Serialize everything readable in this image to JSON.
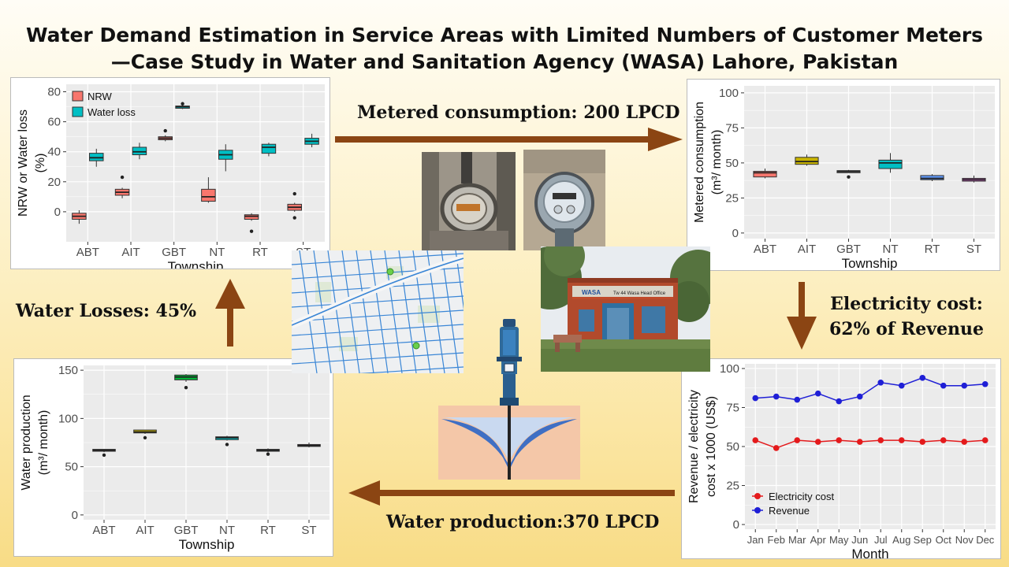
{
  "title": {
    "line1": "Water Demand Estimation in Service Areas with Limited Numbers of Customer Meters",
    "line2": "—Case Study in Water and Sanitation Agency (WASA) Lahore, Pakistan"
  },
  "labels": {
    "metered": "Metered consumption: 200 LPCD",
    "electricity_1": "Electricity cost:",
    "electricity_2": "62% of Revenue",
    "production": "Water production:370 LPCD",
    "losses": "Water Losses: 45%"
  },
  "photos": {
    "office_sign": "Tw 44 Wasa Head Office",
    "office_brand": "WASA"
  },
  "colors": {
    "arrow": "#8b4513",
    "nrw": "#f8766d",
    "water_loss": "#00bfc4",
    "electricity": "#e41a1c",
    "revenue": "#1f1fd6",
    "panel_bg": "#ebebeb"
  },
  "chart_data": [
    {
      "id": "nrw",
      "type": "boxplot",
      "ylabel_lines": [
        "NRW or Water loss",
        "(%)"
      ],
      "xlabel": "Township",
      "categories": [
        "ABT",
        "AIT",
        "GBT",
        "NT",
        "RT",
        "ST"
      ],
      "ylim": [
        -20,
        85
      ],
      "yticks": [
        0,
        20,
        40,
        60,
        80
      ],
      "legend": {
        "position": "top-left",
        "entries": [
          "NRW",
          "Water loss"
        ]
      },
      "series": [
        {
          "name": "NRW",
          "boxes": [
            {
              "q1": -5,
              "med": -3,
              "q3": -1,
              "lo": -8,
              "hi": 1,
              "out": []
            },
            {
              "q1": 11,
              "med": 13,
              "q3": 15,
              "lo": 9,
              "hi": 16,
              "out": [
                23
              ]
            },
            {
              "q1": 48,
              "med": 49,
              "q3": 50,
              "lo": 47,
              "hi": 51,
              "out": [
                54
              ]
            },
            {
              "q1": 7,
              "med": 10,
              "q3": 15,
              "lo": 6,
              "hi": 23,
              "out": []
            },
            {
              "q1": -5,
              "med": -3,
              "q3": -2,
              "lo": -6,
              "hi": -1,
              "out": [
                -13
              ]
            },
            {
              "q1": 1,
              "med": 3,
              "q3": 5,
              "lo": 0,
              "hi": 6,
              "out": [
                12,
                -4
              ]
            }
          ]
        },
        {
          "name": "Water loss",
          "boxes": [
            {
              "q1": 34,
              "med": 36,
              "q3": 39,
              "lo": 30,
              "hi": 42,
              "out": []
            },
            {
              "q1": 38,
              "med": 40,
              "q3": 43,
              "lo": 35,
              "hi": 46,
              "out": []
            },
            {
              "q1": 69,
              "med": 70,
              "q3": 70.5,
              "lo": 68.5,
              "hi": 71,
              "out": [
                72
              ]
            },
            {
              "q1": 35,
              "med": 38,
              "q3": 41,
              "lo": 27,
              "hi": 45,
              "out": []
            },
            {
              "q1": 39,
              "med": 43,
              "q3": 45,
              "lo": 37,
              "hi": 46,
              "out": []
            },
            {
              "q1": 45,
              "med": 47,
              "q3": 49,
              "lo": 43,
              "hi": 52,
              "out": []
            }
          ]
        }
      ]
    },
    {
      "id": "metered",
      "type": "boxplot",
      "ylabel_lines": [
        "Metered consumption",
        "(m³/ month)"
      ],
      "xlabel": "Township",
      "categories": [
        "ABT",
        "AIT",
        "GBT",
        "NT",
        "RT",
        "ST"
      ],
      "ylim": [
        -4,
        105
      ],
      "yticks": [
        0,
        25,
        50,
        75,
        100
      ],
      "series": [
        {
          "name": "",
          "color": "#d1685f",
          "boxes": [
            {
              "q1": 40,
              "med": 43,
              "q3": 44,
              "lo": 39,
              "hi": 46,
              "out": []
            },
            {
              "q1": 49,
              "med": 51,
              "q3": 54,
              "lo": 48,
              "hi": 56,
              "out": []
            },
            {
              "q1": 43,
              "med": 44,
              "q3": 44.5,
              "lo": 43,
              "hi": 45,
              "out": [
                40
              ]
            },
            {
              "q1": 46,
              "med": 50,
              "q3": 52,
              "lo": 43,
              "hi": 57,
              "out": []
            },
            {
              "q1": 38,
              "med": 39,
              "q3": 41,
              "lo": 37,
              "hi": 42,
              "out": []
            },
            {
              "q1": 37,
              "med": 38,
              "q3": 39,
              "lo": 36,
              "hi": 41,
              "out": []
            }
          ],
          "colors": [
            "#f8766d",
            "#c8b400",
            "#7c7c7c",
            "#00bfc4",
            "#619cff",
            "#f564e3"
          ]
        }
      ]
    },
    {
      "id": "production",
      "type": "boxplot",
      "ylabel_lines": [
        "Water production",
        "(m³/ month)"
      ],
      "xlabel": "Township",
      "categories": [
        "ABT",
        "AIT",
        "GBT",
        "NT",
        "RT",
        "ST"
      ],
      "ylim": [
        -5,
        155
      ],
      "yticks": [
        0,
        50,
        100,
        150
      ],
      "series": [
        {
          "name": "",
          "boxes": [
            {
              "q1": 66,
              "med": 67,
              "q3": 68,
              "lo": 65,
              "hi": 68,
              "out": [
                62
              ]
            },
            {
              "q1": 85,
              "med": 86,
              "q3": 88,
              "lo": 84,
              "hi": 88,
              "out": [
                80
              ]
            },
            {
              "q1": 140,
              "med": 143,
              "q3": 145,
              "lo": 138,
              "hi": 146,
              "out": [
                132
              ]
            },
            {
              "q1": 78,
              "med": 80,
              "q3": 81,
              "lo": 77,
              "hi": 82,
              "out": [
                73
              ]
            },
            {
              "q1": 66,
              "med": 67,
              "q3": 68,
              "lo": 65,
              "hi": 69,
              "out": [
                63
              ]
            },
            {
              "q1": 71,
              "med": 72,
              "q3": 73,
              "lo": 70,
              "hi": 75,
              "out": []
            }
          ],
          "colors": [
            "#f8766d",
            "#c8b400",
            "#00ba38",
            "#00bfc4",
            "#619cff",
            "#f564e3"
          ]
        }
      ]
    },
    {
      "id": "revenue",
      "type": "line",
      "ylabel_lines": [
        "Revenue / electricity",
        "cost x 1000 (US$)"
      ],
      "xlabel": "Month",
      "categories": [
        "Jan",
        "Feb",
        "Mar",
        "Apr",
        "May",
        "Jun",
        "Jul",
        "Aug",
        "Sep",
        "Oct",
        "Nov",
        "Dec"
      ],
      "ylim": [
        -3,
        103
      ],
      "yticks": [
        0,
        25,
        50,
        75,
        100
      ],
      "legend": {
        "position": "bottom-left"
      },
      "series": [
        {
          "name": "Electricity cost",
          "values": [
            54,
            49,
            54,
            53,
            54,
            53,
            54,
            54,
            53,
            54,
            53,
            54
          ]
        },
        {
          "name": "Revenue",
          "values": [
            81,
            82,
            80,
            84,
            79,
            82,
            91,
            89,
            94,
            89,
            89,
            90
          ]
        }
      ]
    }
  ]
}
